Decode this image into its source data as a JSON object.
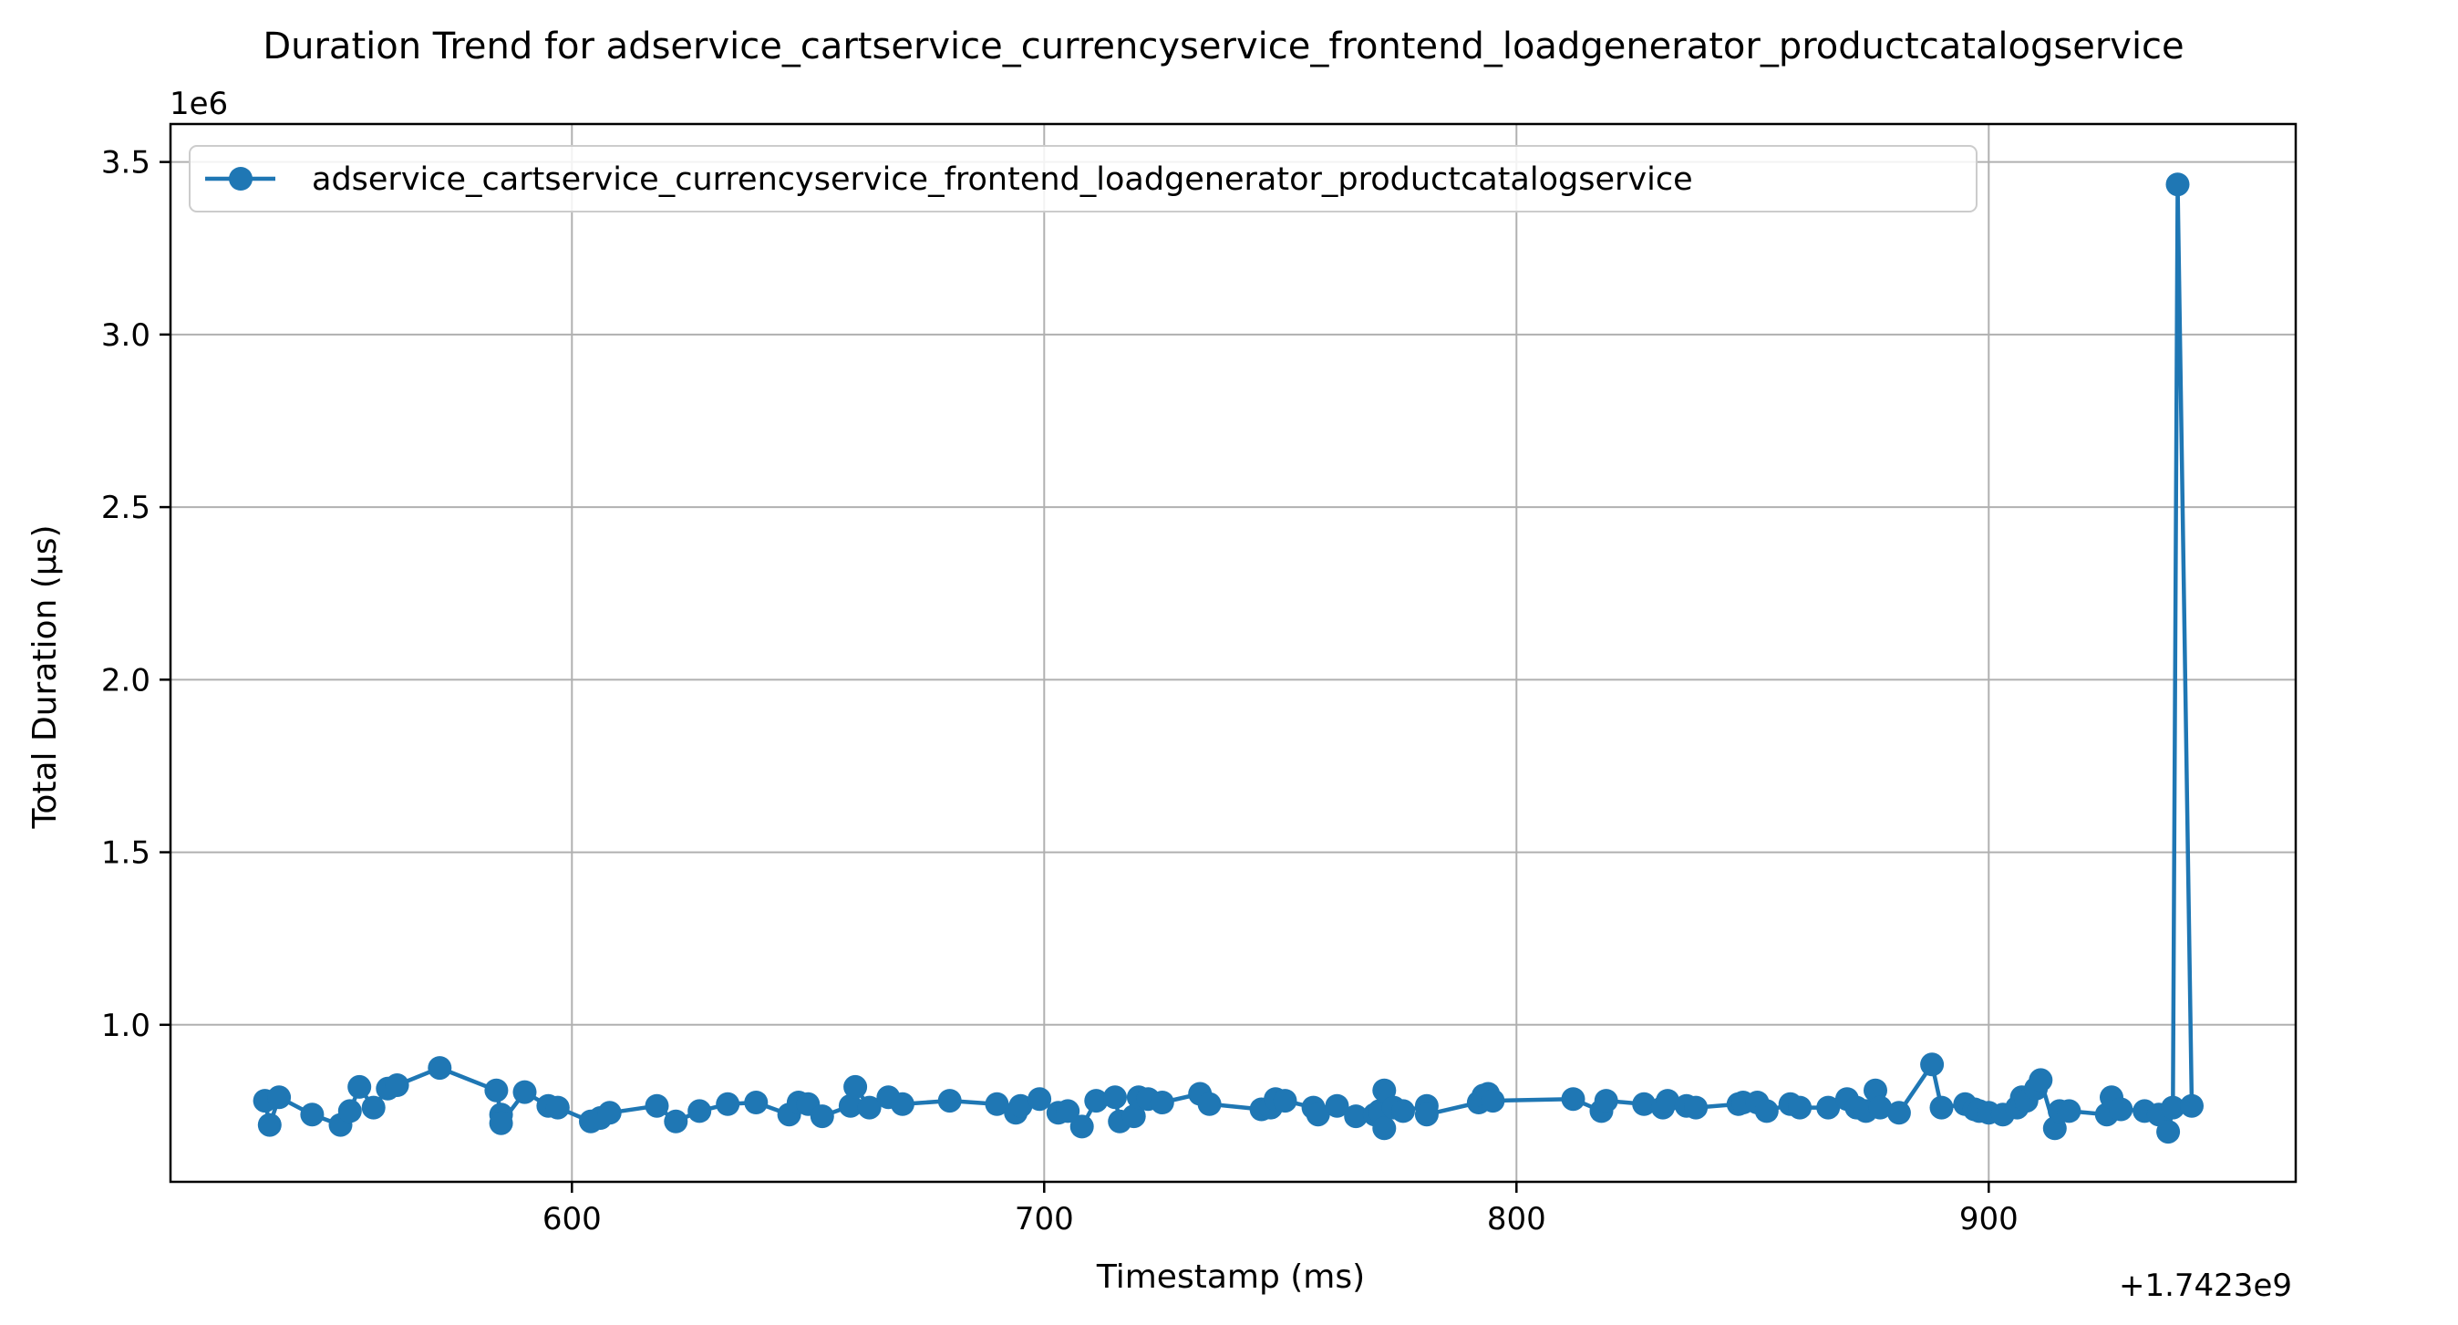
{
  "chart_data": {
    "type": "line",
    "title": "Duration Trend for adservice_cartservice_currencyservice_frontend_loadgenerator_productcatalogservice",
    "xlabel": "Timestamp (ms)",
    "ylabel": "Total Duration (µs)",
    "x_offset_label": "+1.7423e9",
    "y_scale_label": "1e6",
    "xlim": [
      515,
      965
    ],
    "ylim": [
      545000,
      3610000
    ],
    "x_ticks": [
      600,
      700,
      800,
      900
    ],
    "x_tick_labels": [
      "600",
      "700",
      "800",
      "900"
    ],
    "y_ticks": [
      1000000,
      1500000,
      2000000,
      2500000,
      3000000,
      3500000
    ],
    "y_tick_labels": [
      "1.0",
      "1.5",
      "2.0",
      "2.5",
      "3.0",
      "3.5"
    ],
    "grid": true,
    "legend_position": "upper-left",
    "series": [
      {
        "name": "adservice_cartservice_currencyservice_frontend_loadgenerator_productcatalogservice",
        "color": "#1f77b4",
        "marker": "circle",
        "points": [
          [
            535,
            780000
          ],
          [
            536,
            710000
          ],
          [
            538,
            790000
          ],
          [
            545,
            740000
          ],
          [
            551,
            710000
          ],
          [
            553,
            750000
          ],
          [
            555,
            820000
          ],
          [
            558,
            760000
          ],
          [
            561,
            815000
          ],
          [
            563,
            825000
          ],
          [
            572,
            875000
          ],
          [
            584,
            810000
          ],
          [
            585,
            740000
          ],
          [
            585,
            715000
          ],
          [
            590,
            805000
          ],
          [
            595,
            765000
          ],
          [
            597,
            760000
          ],
          [
            604,
            720000
          ],
          [
            606,
            730000
          ],
          [
            608,
            745000
          ],
          [
            618,
            765000
          ],
          [
            622,
            720000
          ],
          [
            627,
            750000
          ],
          [
            633,
            770000
          ],
          [
            639,
            775000
          ],
          [
            646,
            740000
          ],
          [
            648,
            775000
          ],
          [
            650,
            770000
          ],
          [
            653,
            735000
          ],
          [
            659,
            765000
          ],
          [
            660,
            820000
          ],
          [
            663,
            760000
          ],
          [
            667,
            790000
          ],
          [
            670,
            770000
          ],
          [
            680,
            780000
          ],
          [
            690,
            770000
          ],
          [
            694,
            745000
          ],
          [
            695,
            765000
          ],
          [
            699,
            785000
          ],
          [
            703,
            745000
          ],
          [
            705,
            750000
          ],
          [
            708,
            705000
          ],
          [
            711,
            780000
          ],
          [
            715,
            790000
          ],
          [
            716,
            720000
          ],
          [
            719,
            735000
          ],
          [
            720,
            790000
          ],
          [
            722,
            785000
          ],
          [
            725,
            775000
          ],
          [
            733,
            800000
          ],
          [
            735,
            770000
          ],
          [
            746,
            755000
          ],
          [
            748,
            760000
          ],
          [
            749,
            785000
          ],
          [
            751,
            780000
          ],
          [
            757,
            760000
          ],
          [
            758,
            740000
          ],
          [
            762,
            765000
          ],
          [
            766,
            735000
          ],
          [
            770,
            740000
          ],
          [
            771,
            750000
          ],
          [
            772,
            700000
          ],
          [
            772,
            810000
          ],
          [
            774,
            760000
          ],
          [
            776,
            750000
          ],
          [
            781,
            765000
          ],
          [
            781,
            740000
          ],
          [
            792,
            775000
          ],
          [
            793,
            795000
          ],
          [
            794,
            800000
          ],
          [
            795,
            780000
          ],
          [
            812,
            785000
          ],
          [
            818,
            750000
          ],
          [
            819,
            780000
          ],
          [
            827,
            770000
          ],
          [
            831,
            760000
          ],
          [
            832,
            780000
          ],
          [
            836,
            765000
          ],
          [
            838,
            760000
          ],
          [
            847,
            770000
          ],
          [
            848,
            775000
          ],
          [
            851,
            775000
          ],
          [
            853,
            750000
          ],
          [
            858,
            770000
          ],
          [
            860,
            760000
          ],
          [
            866,
            760000
          ],
          [
            870,
            785000
          ],
          [
            872,
            760000
          ],
          [
            874,
            750000
          ],
          [
            876,
            810000
          ],
          [
            877,
            760000
          ],
          [
            881,
            745000
          ],
          [
            888,
            885000
          ],
          [
            890,
            760000
          ],
          [
            895,
            770000
          ],
          [
            897,
            755000
          ],
          [
            898,
            750000
          ],
          [
            900,
            745000
          ],
          [
            903,
            740000
          ],
          [
            906,
            760000
          ],
          [
            907,
            790000
          ],
          [
            908,
            780000
          ],
          [
            910,
            815000
          ],
          [
            911,
            840000
          ],
          [
            914,
            700000
          ],
          [
            915,
            750000
          ],
          [
            917,
            750000
          ],
          [
            925,
            740000
          ],
          [
            926,
            790000
          ],
          [
            928,
            755000
          ],
          [
            933,
            750000
          ],
          [
            936,
            740000
          ],
          [
            938,
            690000
          ],
          [
            939,
            760000
          ],
          [
            940,
            3435000
          ],
          [
            943,
            765000
          ]
        ]
      }
    ]
  }
}
